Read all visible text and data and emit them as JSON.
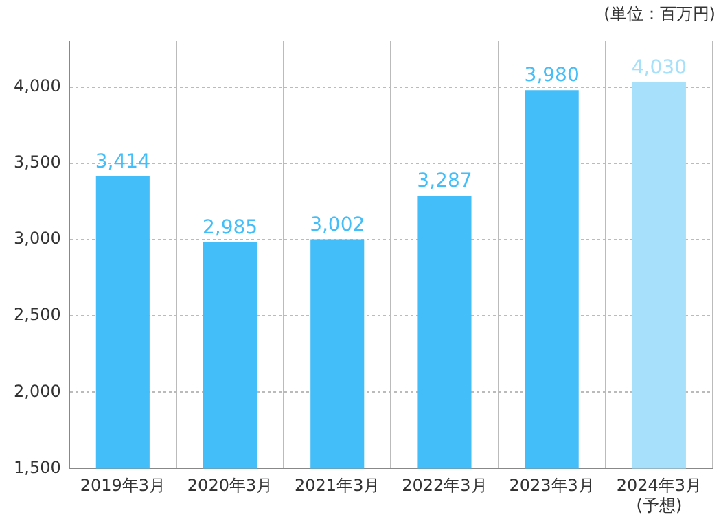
{
  "chart_data": {
    "type": "bar",
    "categories": [
      "2019年3月",
      "2020年3月",
      "2021年3月",
      "2022年3月",
      "2023年3月",
      "2024年3月\n(予想)"
    ],
    "values": [
      3414,
      2985,
      3002,
      3287,
      3980,
      4030
    ],
    "colors": [
      "#44bef8",
      "#44bef8",
      "#44bef8",
      "#44bef8",
      "#44bef8",
      "#a6e0fb"
    ],
    "value_labels": [
      "3,414",
      "2,985",
      "3,002",
      "3,287",
      "3,980",
      "4,030"
    ],
    "ylim": [
      1500,
      4300
    ],
    "yticks": [
      {
        "value": 1500,
        "label": "1,500"
      },
      {
        "value": 2000,
        "label": "2,000"
      },
      {
        "value": 2500,
        "label": "2,500"
      },
      {
        "value": 3000,
        "label": "3,000"
      },
      {
        "value": 3500,
        "label": "3,500"
      },
      {
        "value": 4000,
        "label": "4,000"
      }
    ],
    "grid": true,
    "annotations": [
      "(単位：百万円)"
    ]
  }
}
